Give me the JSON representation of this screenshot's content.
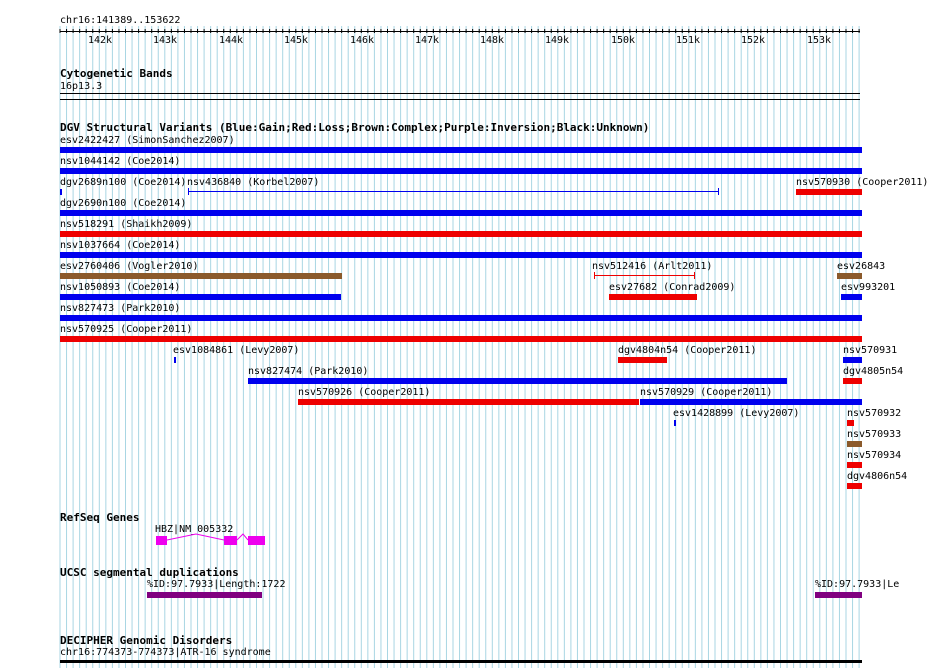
{
  "ruler": {
    "range_label": "chr16:141389..153622",
    "ticks": [
      "142k",
      "143k",
      "144k",
      "145k",
      "146k",
      "147k",
      "148k",
      "149k",
      "150k",
      "151k",
      "152k",
      "153k"
    ]
  },
  "cytobands": {
    "title": "Cytogenetic Bands",
    "band": "16p13.3"
  },
  "dgv": {
    "title": "DGV Structural Variants (Blue:Gain;Red:Loss;Brown:Complex;Purple:Inversion;Black:Unknown)",
    "labels": [
      "esv2422427 (SimonSanchez2007)",
      "nsv1044142 (Coe2014)",
      "dgv2689n100 (Coe2014)",
      "nsv436840 (Korbel2007)",
      "nsv570930 (Cooper2011)",
      "dgv2690n100 (Coe2014)",
      "nsv518291 (Shaikh2009)",
      "nsv1037664 (Coe2014)",
      "esv2760406 (Vogler2010)",
      "nsv512416 (Arlt2011)",
      "esv26843",
      "nsv1050893 (Coe2014)",
      "esv27682 (Conrad2009)",
      "esv993201",
      "nsv827473 (Park2010)",
      "nsv570925 (Cooper2011)",
      "esv1084861 (Levy2007)",
      "dgv4804n54 (Cooper2011)",
      "nsv570931",
      "nsv827474 (Park2010)",
      "dgv4805n54",
      "nsv570926 (Cooper2011)",
      "nsv570929 (Cooper2011)",
      "esv1428899 (Levy2007)",
      "nsv570932",
      "nsv570933",
      "nsv570934",
      "dgv4806n54"
    ]
  },
  "refseq": {
    "title": "RefSeq Genes",
    "gene": "HBZ|NM_005332"
  },
  "segdups": {
    "title": "UCSC segmental duplications",
    "left": "%ID:97.7933|Length:1722",
    "right": "%ID:97.7933|Le"
  },
  "decipher": {
    "title": "DECIPHER Genomic Disorders",
    "item": "chr16:774373-774373|ATR-16 syndrome"
  },
  "colors": {
    "gain": "#0000ee",
    "loss": "#ee0000",
    "complex": "#8b5a2b",
    "gene": "#ee00ee",
    "segdup": "#800080",
    "grid": "#a9d6e3"
  }
}
